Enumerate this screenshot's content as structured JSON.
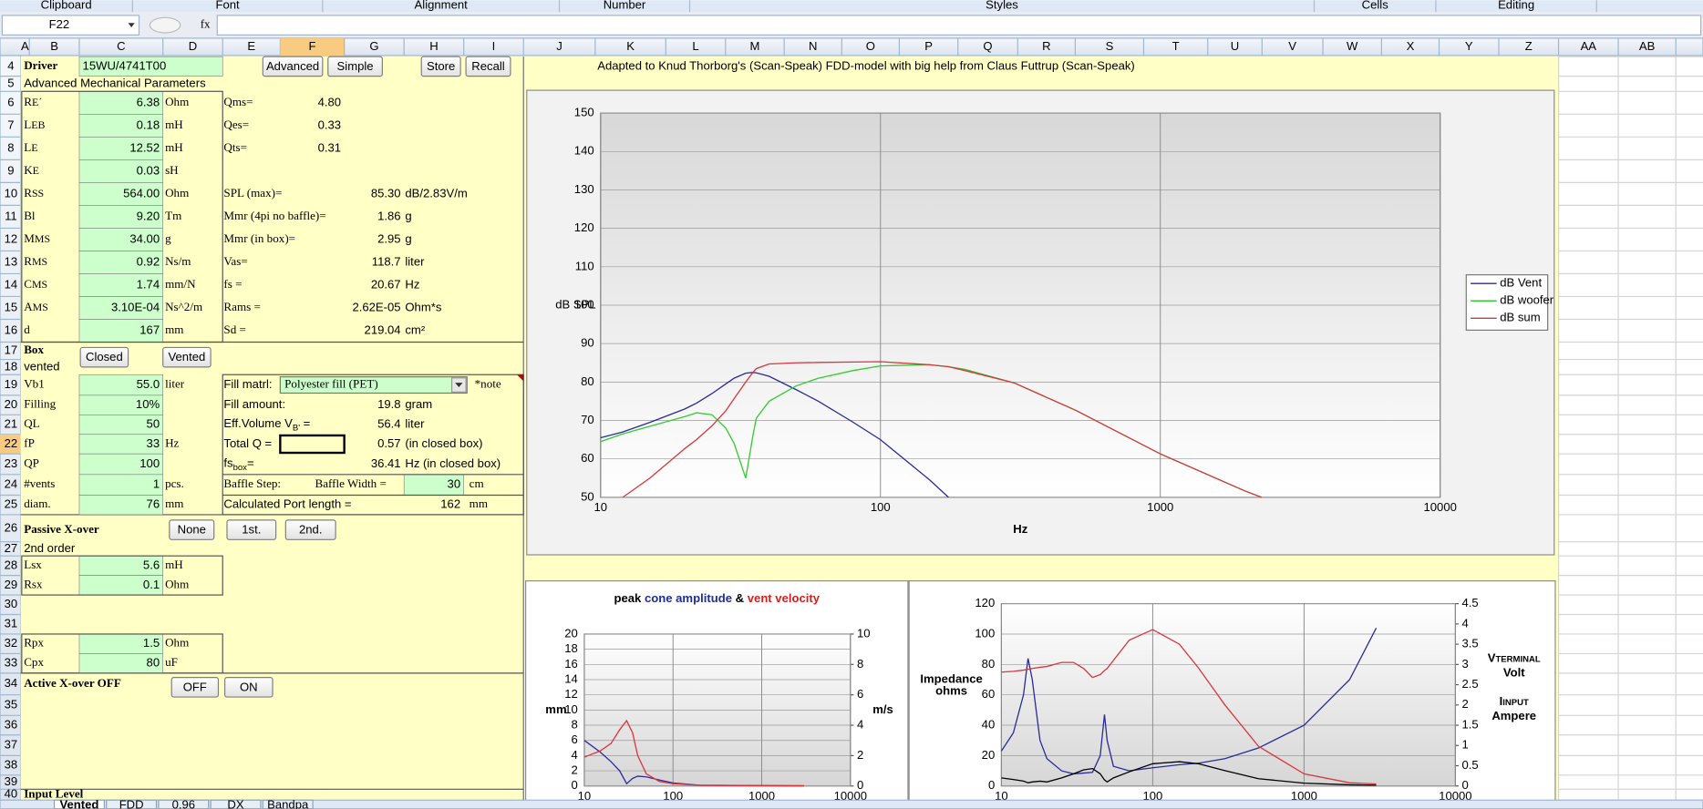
{
  "ribbon_groups": [
    "Clipboard",
    "Font",
    "Alignment",
    "Number",
    "Styles",
    "Cells",
    "Editing"
  ],
  "name_box": "F22",
  "formula_label": "fx",
  "columns": [
    "A",
    "B",
    "C",
    "D",
    "E",
    "F",
    "G",
    "H",
    "I",
    "J",
    "K",
    "L",
    "M",
    "N",
    "O",
    "P",
    "Q",
    "R",
    "S",
    "T",
    "U",
    "V",
    "W",
    "X",
    "Y",
    "Z",
    "AA",
    "AB"
  ],
  "rows": [
    "4",
    "5",
    "6",
    "7",
    "8",
    "9",
    "10",
    "11",
    "12",
    "13",
    "14",
    "15",
    "16",
    "17",
    "18",
    "19",
    "20",
    "21",
    "22",
    "23",
    "24",
    "25",
    "26",
    "27",
    "28",
    "29",
    "30",
    "31",
    "32",
    "33",
    "34",
    "35",
    "36",
    "37",
    "38",
    "39",
    "40"
  ],
  "credit": "Adapted to Knud Thorborg's (Scan-Speak)  FDD-model with big help from Claus Futtrup (Scan-Speak)",
  "driver": {
    "label": "Driver",
    "name": "15WU/4741T00",
    "subtitle": "Advanced Mechanical Parameters"
  },
  "buttons": [
    "Advanced",
    "Simple",
    "Store",
    "Recall",
    "Closed",
    "Vented",
    "None",
    "1st.",
    "2nd.",
    "OFF",
    "ON"
  ],
  "driver_params": [
    {
      "symbol": "R",
      "sub": "E´",
      "value": "6.38",
      "unit": "Ohm"
    },
    {
      "symbol": "L",
      "sub": "EB",
      "value": "0.18",
      "unit": "mH"
    },
    {
      "symbol": "L",
      "sub": "E",
      "value": "12.52",
      "unit": "mH"
    },
    {
      "symbol": "K",
      "sub": "E",
      "value": "0.03",
      "unit": "sH"
    },
    {
      "symbol": "R",
      "sub": "SS",
      "value": "564.00",
      "unit": "Ohm"
    },
    {
      "symbol": "Bl",
      "value": "9.20",
      "unit": "Tm"
    },
    {
      "symbol": "M",
      "sub": "MS",
      "value": "34.00",
      "unit": "g"
    },
    {
      "symbol": "R",
      "sub": "MS",
      "value": "0.92",
      "unit": "Ns/m"
    },
    {
      "symbol": "C",
      "sub": "MS",
      "value": "1.74",
      "unit": "mm/N"
    },
    {
      "symbol": "A",
      "sub": "MS",
      "value": "3.10E-04",
      "unit": "Ns^2/m"
    },
    {
      "symbol": "d",
      "value": "167",
      "unit": "mm"
    }
  ],
  "derived_params": [
    {
      "label": "Qms=",
      "value": "4.80"
    },
    {
      "label": "Qes=",
      "value": "0.33"
    },
    {
      "label": "Qts=",
      "value": "0.31"
    },
    {
      "label": "SPL (max)=",
      "value": "85.30",
      "unit": "dB/2.83V/m"
    },
    {
      "label": "Mmr (4pi no baffle)=",
      "value": "1.86",
      "unit": "g"
    },
    {
      "label": "Mmr (in box)=",
      "value": "2.95",
      "unit": "g"
    },
    {
      "label": "Vas=",
      "value": "118.7",
      "unit": "liter"
    },
    {
      "label": "fs =",
      "value": "20.67",
      "unit": "Hz"
    },
    {
      "label": "Rams =",
      "value": "2.62E-05",
      "unit": "Ohm*s"
    },
    {
      "label": "Sd =",
      "value": "219.04",
      "unit": "cm²"
    }
  ],
  "box": {
    "title": "Box",
    "mode": "vented",
    "params": [
      {
        "name": "Vb1",
        "value": "55.0",
        "unit": "liter"
      },
      {
        "name": "Filling",
        "value": "10%"
      },
      {
        "name": "QL",
        "value": "50"
      },
      {
        "name": "fP",
        "value": "33",
        "unit": "Hz"
      },
      {
        "name": "QP",
        "value": "100"
      },
      {
        "name": "#vents",
        "value": "1",
        "unit": "pcs."
      },
      {
        "name": "diam.",
        "value": "76",
        "unit": "mm"
      }
    ],
    "fill_material": {
      "label": "Fill matrl:",
      "value": "Polyester fill (PET)",
      "note": "*note"
    },
    "fill_amount": {
      "label": "Fill amount:",
      "value": "19.8",
      "unit": "gram"
    },
    "eff_volume": {
      "label": "Eff.Volume V",
      "sub": "B'",
      "after": " =",
      "value": "56.4",
      "unit": "liter"
    },
    "total_q": {
      "label": "Total Q =",
      "value": "0.57",
      "unit": "(in closed box)"
    },
    "fs_box": {
      "label": "fs",
      "sub": "box",
      "after": "=",
      "value": "36.41",
      "unit": "Hz  (in closed box)"
    },
    "baffle": {
      "label": "Baffle Step:",
      "width_label": "Baffle Width  =",
      "value": "30",
      "unit": "cm"
    },
    "port": {
      "label": "Calculated Port length =",
      "value": "162",
      "unit": "mm"
    }
  },
  "passive": {
    "title": "Passive X-over",
    "order": "2nd order",
    "params": [
      {
        "name": "Lsx",
        "value": "5.6",
        "unit": "mH"
      },
      {
        "name": "Rsx",
        "value": "0.1",
        "unit": "Ohm"
      },
      {
        "name": "Rpx",
        "value": "1.5",
        "unit": "Ohm"
      },
      {
        "name": "Cpx",
        "value": "80",
        "unit": "uF"
      }
    ]
  },
  "active": {
    "title": "Active X-over OFF"
  },
  "input_level": "Input Level",
  "sheet_tabs": [
    "Vented",
    "FDD",
    "0.96",
    "DX",
    "Bandpa"
  ],
  "charts": [
    {
      "type": "line",
      "y_label": "dB SPL",
      "x_label": "Hz",
      "x_scale": "log",
      "xlim": [
        10,
        10000
      ],
      "xticks": [
        10,
        100,
        1000,
        10000
      ],
      "ylim": [
        50,
        150
      ],
      "yticks": [
        50,
        60,
        70,
        80,
        90,
        100,
        110,
        120,
        130,
        140,
        150
      ],
      "grid": true,
      "legend": "right",
      "x": [
        10,
        12,
        15,
        20,
        22,
        25,
        28,
        30,
        33,
        35,
        36,
        40,
        50,
        60,
        80,
        100,
        150,
        175,
        200,
        300,
        500,
        1000,
        2000,
        2300
      ],
      "series": [
        {
          "name": "dB Vent",
          "color": "#2b2b9a",
          "values": [
            65.5,
            67,
            69.5,
            73,
            74.5,
            77,
            79.5,
            81,
            82.3,
            82.5,
            82.4,
            81.5,
            78,
            75,
            69.5,
            65,
            54.5,
            50,
            null,
            null,
            null,
            null,
            null,
            null
          ]
        },
        {
          "name": "dB woofer",
          "color": "#33cc33",
          "values": [
            64.5,
            66.5,
            68.5,
            71,
            72,
            71.5,
            68,
            64,
            55,
            66,
            70.6,
            75,
            79,
            81,
            83,
            84.2,
            84.5,
            84,
            83.3,
            79.8,
            72.6,
            61.3,
            51.7,
            50
          ]
        },
        {
          "name": "dB sum",
          "color": "#d9363e",
          "values": [
            null,
            50,
            55,
            62.7,
            65,
            68.6,
            72.5,
            75.7,
            80,
            82.5,
            83.5,
            84.7,
            85,
            85.1,
            85.2,
            85.3,
            84.5,
            84,
            83,
            79.8,
            72.6,
            61.3,
            51.7,
            50
          ]
        }
      ]
    },
    {
      "type": "line",
      "title_parts": [
        {
          "text": "peak",
          "color": "#000000"
        },
        {
          "text": "cone amplitude",
          "color": "#1f2d9c"
        },
        {
          "text": "&",
          "color": "#000000"
        },
        {
          "text": "vent velocity",
          "color": "#d42020"
        }
      ],
      "y_label": "mm",
      "y2_label": "m/s",
      "x_scale": "log",
      "xlim": [
        10,
        10000
      ],
      "xticks": [
        10,
        100,
        1000,
        10000
      ],
      "ylim": [
        0,
        20
      ],
      "yticks": [
        0,
        2,
        4,
        6,
        8,
        10,
        12,
        14,
        16,
        18,
        20
      ],
      "y2lim": [
        0,
        10
      ],
      "y2ticks": [
        0,
        2,
        4,
        6,
        8,
        10
      ],
      "grid": true,
      "x": [
        10,
        15,
        20,
        25,
        30,
        35,
        40,
        50,
        70,
        100,
        200,
        1000,
        3000
      ],
      "series": [
        {
          "color": "#2b2b9a",
          "values": [
            6,
            4.5,
            3.2,
            2,
            0.3,
            1,
            1.3,
            1.2,
            0.8,
            0.4,
            0.1,
            0.05,
            0.02
          ]
        },
        {
          "color": "#d9363e",
          "axis": "y2",
          "values": [
            1.9,
            2.3,
            2.8,
            3.7,
            4.3,
            3.5,
            2,
            0.8,
            0.3,
            0.15,
            0.05,
            0.02,
            0.01
          ]
        }
      ]
    },
    {
      "type": "line",
      "y_label_lines": [
        "Impedance",
        "ohms"
      ],
      "y_label_color": "#1f2d9c",
      "y2_labels": [
        {
          "text": "V",
          "sub": "TERMINAL",
          "unit": "Volt",
          "color": "#d42020"
        },
        {
          "text": "I",
          "sub": "INPUT",
          "unit": "Ampere",
          "color": "#000000"
        }
      ],
      "x_scale": "log",
      "xlim": [
        10,
        10000
      ],
      "xticks": [
        10,
        100,
        1000,
        10000
      ],
      "ylim": [
        0,
        120
      ],
      "yticks": [
        0,
        20,
        40,
        60,
        80,
        100,
        120
      ],
      "y2lim": [
        0,
        4.5
      ],
      "y2ticks": [
        0,
        0.5,
        1,
        1.5,
        2,
        2.5,
        3,
        3.5,
        4,
        4.5
      ],
      "grid": true,
      "x": [
        10,
        12,
        14,
        15,
        16,
        18,
        20,
        25,
        30,
        35,
        40,
        45,
        48,
        50,
        55,
        70,
        100,
        150,
        200,
        300,
        500,
        1000,
        2000,
        3000
      ],
      "series": [
        {
          "color": "#2b2b9a",
          "values": [
            23,
            35,
            60,
            84,
            70,
            30,
            18,
            10,
            8,
            8.5,
            9,
            20,
            47,
            30,
            13,
            10,
            12,
            14,
            15,
            18,
            25,
            40,
            70,
            104
          ]
        },
        {
          "color": "#d9363e",
          "axis": "y2",
          "values": [
            2.81,
            2.83,
            2.86,
            2.88,
            2.9,
            2.93,
            2.95,
            3.05,
            3.05,
            2.9,
            2.68,
            2.75,
            2.85,
            2.9,
            3.1,
            3.6,
            3.86,
            3.5,
            2.92,
            2,
            0.98,
            0.3,
            0.08,
            0.05
          ]
        },
        {
          "color": "#000000",
          "axis": "y2",
          "values": [
            0.2,
            0.16,
            0.12,
            0.08,
            0.1,
            0.12,
            0.1,
            0.2,
            0.3,
            0.4,
            0.43,
            0.3,
            0.15,
            0.1,
            0.2,
            0.35,
            0.55,
            0.6,
            0.55,
            0.38,
            0.18,
            0.07,
            0.03,
            0.02
          ]
        }
      ]
    }
  ]
}
